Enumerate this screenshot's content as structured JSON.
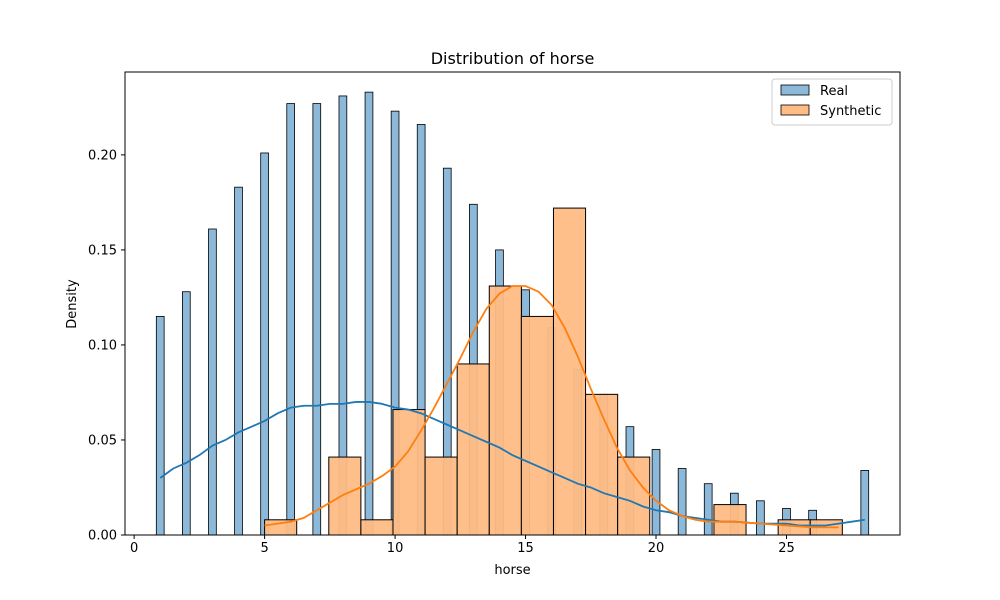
{
  "chart_data": {
    "type": "bar",
    "title": "Distribution of horse",
    "xlabel": "horse",
    "ylabel": "Density",
    "xlim": [
      -0.35,
      29.35
    ],
    "ylim": [
      0,
      0.2436
    ],
    "xticks": [
      0,
      5,
      10,
      15,
      20,
      25
    ],
    "yticks": [
      0.0,
      0.05,
      0.1,
      0.15,
      0.2
    ],
    "ytick_labels": [
      "0.00",
      "0.05",
      "0.10",
      "0.15",
      "0.20"
    ],
    "legend": {
      "position": "top-right",
      "entries": [
        "Real",
        "Synthetic"
      ]
    },
    "series": [
      {
        "name": "Real",
        "kind": "histogram",
        "color": "#1f77b4",
        "bar_fill": "#8cb8d9",
        "bin_width": 0.3,
        "bars": [
          {
            "x": 1,
            "density": 0.115
          },
          {
            "x": 2,
            "density": 0.128
          },
          {
            "x": 3,
            "density": 0.161
          },
          {
            "x": 4,
            "density": 0.183
          },
          {
            "x": 5,
            "density": 0.201
          },
          {
            "x": 6,
            "density": 0.227
          },
          {
            "x": 7,
            "density": 0.227
          },
          {
            "x": 8,
            "density": 0.231
          },
          {
            "x": 9,
            "density": 0.233
          },
          {
            "x": 10,
            "density": 0.223
          },
          {
            "x": 11,
            "density": 0.216
          },
          {
            "x": 12,
            "density": 0.193
          },
          {
            "x": 13,
            "density": 0.174
          },
          {
            "x": 14,
            "density": 0.15
          },
          {
            "x": 15,
            "density": 0.129
          },
          {
            "x": 16,
            "density": 0.109
          },
          {
            "x": 17,
            "density": 0.087
          },
          {
            "x": 18,
            "density": 0.074
          },
          {
            "x": 19,
            "density": 0.057
          },
          {
            "x": 20,
            "density": 0.045
          },
          {
            "x": 21,
            "density": 0.035
          },
          {
            "x": 22,
            "density": 0.027
          },
          {
            "x": 23,
            "density": 0.022
          },
          {
            "x": 24,
            "density": 0.018
          },
          {
            "x": 25,
            "density": 0.014
          },
          {
            "x": 26,
            "density": 0.013
          },
          {
            "x": 28,
            "density": 0.034
          }
        ],
        "kde": [
          [
            1.0,
            0.03
          ],
          [
            1.5,
            0.035
          ],
          [
            2.0,
            0.038
          ],
          [
            2.5,
            0.042
          ],
          [
            3.0,
            0.047
          ],
          [
            3.5,
            0.05
          ],
          [
            4.0,
            0.054
          ],
          [
            4.5,
            0.057
          ],
          [
            5.0,
            0.06
          ],
          [
            5.5,
            0.064
          ],
          [
            6.0,
            0.067
          ],
          [
            6.5,
            0.068
          ],
          [
            7.0,
            0.068
          ],
          [
            7.5,
            0.069
          ],
          [
            8.0,
            0.069
          ],
          [
            8.5,
            0.07
          ],
          [
            9.0,
            0.07
          ],
          [
            9.5,
            0.069
          ],
          [
            10.0,
            0.067
          ],
          [
            10.5,
            0.066
          ],
          [
            11.0,
            0.064
          ],
          [
            11.5,
            0.061
          ],
          [
            12.0,
            0.058
          ],
          [
            12.5,
            0.055
          ],
          [
            13.0,
            0.052
          ],
          [
            13.5,
            0.049
          ],
          [
            14.0,
            0.046
          ],
          [
            14.5,
            0.042
          ],
          [
            15.0,
            0.039
          ],
          [
            15.5,
            0.036
          ],
          [
            16.0,
            0.033
          ],
          [
            16.5,
            0.03
          ],
          [
            17.0,
            0.027
          ],
          [
            17.5,
            0.025
          ],
          [
            18.0,
            0.022
          ],
          [
            18.5,
            0.02
          ],
          [
            19.0,
            0.018
          ],
          [
            19.5,
            0.015
          ],
          [
            20.0,
            0.013
          ],
          [
            20.5,
            0.012
          ],
          [
            21.0,
            0.01
          ],
          [
            21.5,
            0.009
          ],
          [
            22.0,
            0.008
          ],
          [
            22.5,
            0.007
          ],
          [
            23.0,
            0.007
          ],
          [
            24.0,
            0.006
          ],
          [
            25.0,
            0.006
          ],
          [
            25.5,
            0.005
          ],
          [
            26.0,
            0.005
          ],
          [
            26.5,
            0.005
          ],
          [
            27.0,
            0.006
          ],
          [
            27.5,
            0.007
          ],
          [
            28.0,
            0.008
          ]
        ]
      },
      {
        "name": "Synthetic",
        "kind": "histogram",
        "color": "#ff7f0e",
        "bar_fill": "#ffbc85",
        "bars": [
          {
            "x0": 5.0,
            "x1": 6.23,
            "density": 0.008
          },
          {
            "x0": 7.46,
            "x1": 8.69,
            "density": 0.041
          },
          {
            "x0": 8.69,
            "x1": 9.92,
            "density": 0.008
          },
          {
            "x0": 9.92,
            "x1": 11.15,
            "density": 0.066
          },
          {
            "x0": 11.15,
            "x1": 12.38,
            "density": 0.041
          },
          {
            "x0": 12.38,
            "x1": 13.61,
            "density": 0.09
          },
          {
            "x0": 13.61,
            "x1": 14.84,
            "density": 0.131
          },
          {
            "x0": 14.84,
            "x1": 16.07,
            "density": 0.115
          },
          {
            "x0": 16.07,
            "x1": 17.3,
            "density": 0.172
          },
          {
            "x0": 17.3,
            "x1": 18.53,
            "density": 0.074
          },
          {
            "x0": 18.53,
            "x1": 19.76,
            "density": 0.041
          },
          {
            "x0": 22.22,
            "x1": 23.45,
            "density": 0.016
          },
          {
            "x0": 24.68,
            "x1": 25.91,
            "density": 0.008
          },
          {
            "x0": 25.91,
            "x1": 27.14,
            "density": 0.008
          }
        ],
        "kde": [
          [
            5.0,
            0.005
          ],
          [
            5.5,
            0.006
          ],
          [
            6.0,
            0.007
          ],
          [
            6.5,
            0.009
          ],
          [
            7.0,
            0.013
          ],
          [
            7.5,
            0.017
          ],
          [
            8.0,
            0.021
          ],
          [
            8.5,
            0.024
          ],
          [
            9.0,
            0.027
          ],
          [
            9.5,
            0.031
          ],
          [
            10.0,
            0.036
          ],
          [
            10.5,
            0.044
          ],
          [
            11.0,
            0.055
          ],
          [
            11.5,
            0.067
          ],
          [
            12.0,
            0.08
          ],
          [
            12.5,
            0.093
          ],
          [
            13.0,
            0.107
          ],
          [
            13.5,
            0.119
          ],
          [
            14.0,
            0.127
          ],
          [
            14.5,
            0.131
          ],
          [
            15.0,
            0.131
          ],
          [
            15.5,
            0.128
          ],
          [
            16.0,
            0.121
          ],
          [
            16.5,
            0.109
          ],
          [
            17.0,
            0.094
          ],
          [
            17.5,
            0.077
          ],
          [
            18.0,
            0.061
          ],
          [
            18.5,
            0.046
          ],
          [
            19.0,
            0.034
          ],
          [
            19.5,
            0.025
          ],
          [
            20.0,
            0.018
          ],
          [
            20.5,
            0.013
          ],
          [
            21.0,
            0.01
          ],
          [
            21.5,
            0.008
          ],
          [
            22.0,
            0.007
          ],
          [
            23.0,
            0.007
          ],
          [
            24.0,
            0.006
          ],
          [
            25.0,
            0.005
          ],
          [
            26.0,
            0.004
          ],
          [
            27.0,
            0.004
          ]
        ]
      }
    ]
  }
}
